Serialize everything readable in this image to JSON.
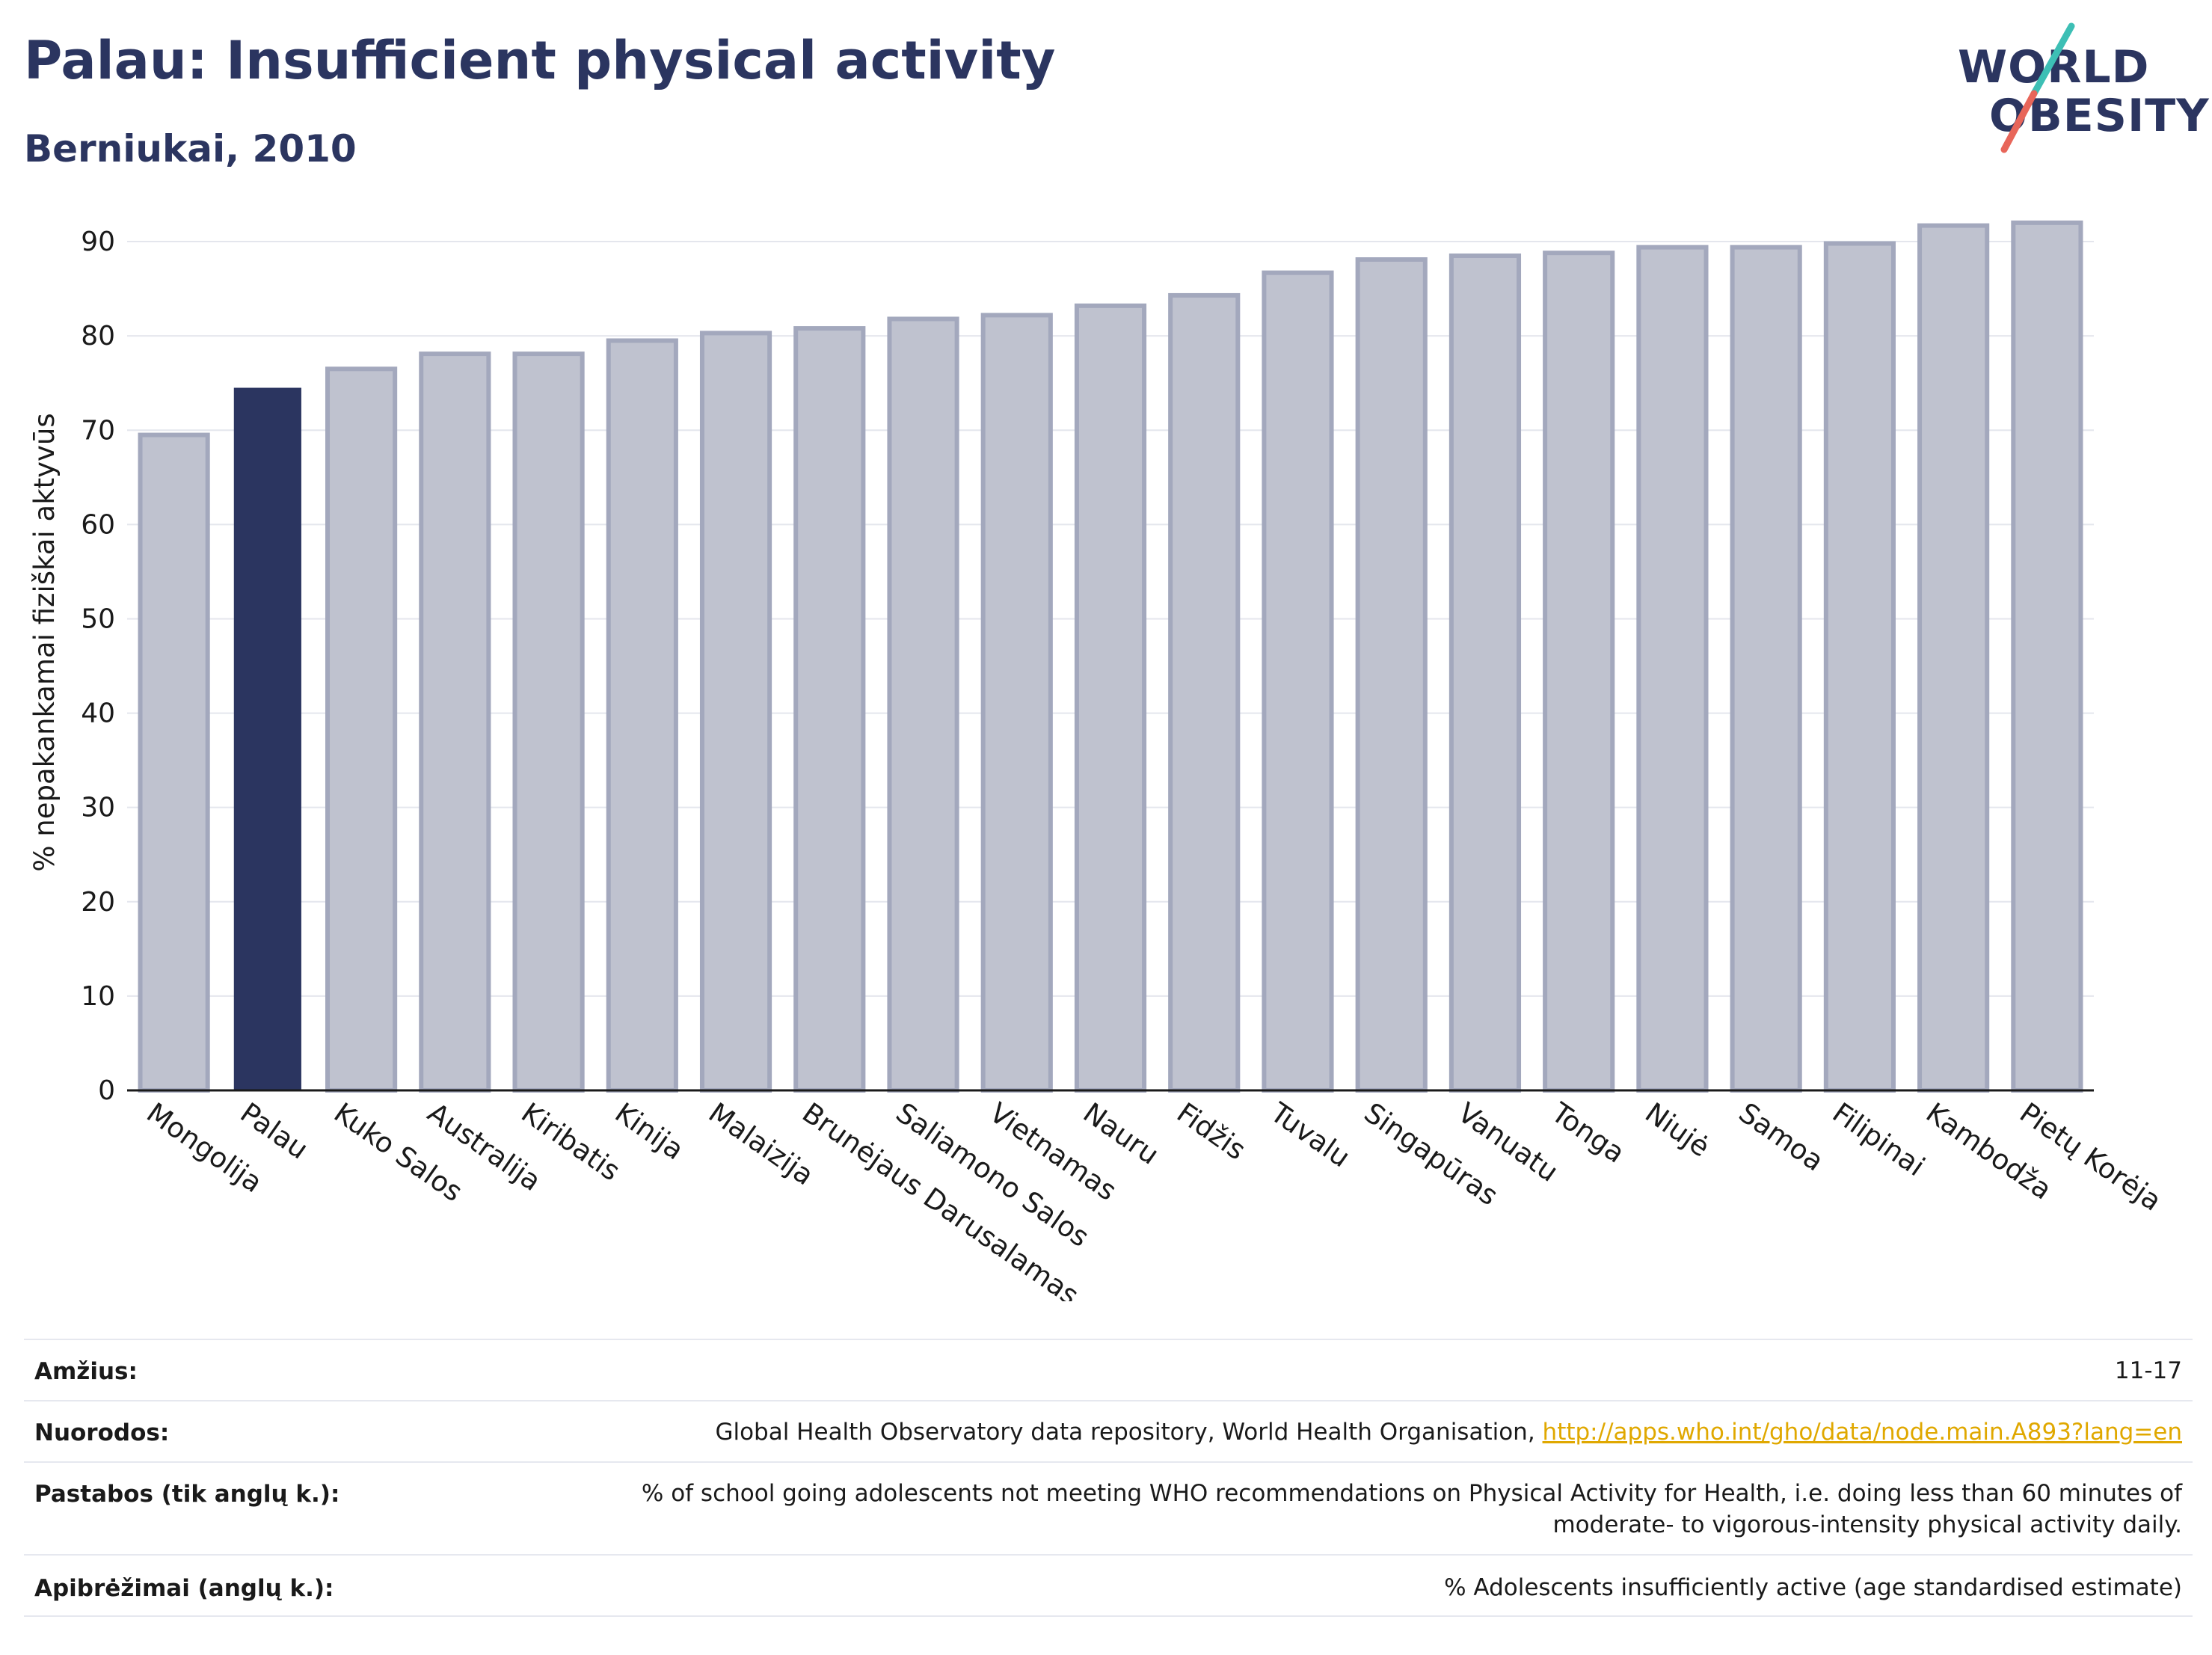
{
  "header": {
    "title": "Palau: Insufficient physical activity",
    "subtitle": "Berniukai, 2010"
  },
  "logo": {
    "line1": "WORLD",
    "line2": "OBESITY"
  },
  "chart_data": {
    "type": "bar",
    "ylabel": "% nepakankamai fiziškai aktyvūs",
    "ylim": [
      0,
      95
    ],
    "yticks": [
      0,
      10,
      20,
      30,
      40,
      50,
      60,
      70,
      80,
      90
    ],
    "grid": true,
    "highlight": "Palau",
    "categories": [
      "Mongolija",
      "Palau",
      "Kuko Salos",
      "Australija",
      "Kiribatis",
      "Kinija",
      "Malaizija",
      "Brunėjaus Darusalamas",
      "Saliamono Salos",
      "Vietnamas",
      "Nauru",
      "Fidžis",
      "Tuvalu",
      "Singapūras",
      "Vanuatu",
      "Tonga",
      "Niujė",
      "Samoa",
      "Filipinai",
      "Kambodža",
      "Pietų Korėja"
    ],
    "values": [
      69.5,
      74.5,
      76.5,
      78.1,
      78.1,
      79.5,
      80.3,
      80.8,
      81.8,
      82.2,
      83.2,
      84.3,
      86.7,
      88.1,
      88.5,
      88.8,
      89.4,
      89.4,
      89.8,
      91.7,
      92.0
    ],
    "colors": {
      "highlight": "#2b3560",
      "other": "#bfc2cf",
      "other_stroke": "#a3a8bd"
    }
  },
  "table": {
    "rows": [
      {
        "key": "Amžius:",
        "value": "11-17"
      },
      {
        "key": "Nuorodos:",
        "value": "Global Health Observatory data repository, World Health Organisation, ",
        "link": "http://apps.who.int/gho/data/node.main.A893?lang=en"
      },
      {
        "key": "Pastabos (tik anglų k.):",
        "value": "% of school going adolescents not meeting WHO recommendations on Physical Activity for Health, i.e. doing less than 60 minutes of",
        "value2": "moderate- to vigorous-intensity physical activity daily."
      },
      {
        "key": "Apibrėžimai (anglų k.):",
        "value": "% Adolescents insufficiently active (age standardised estimate)"
      }
    ]
  }
}
